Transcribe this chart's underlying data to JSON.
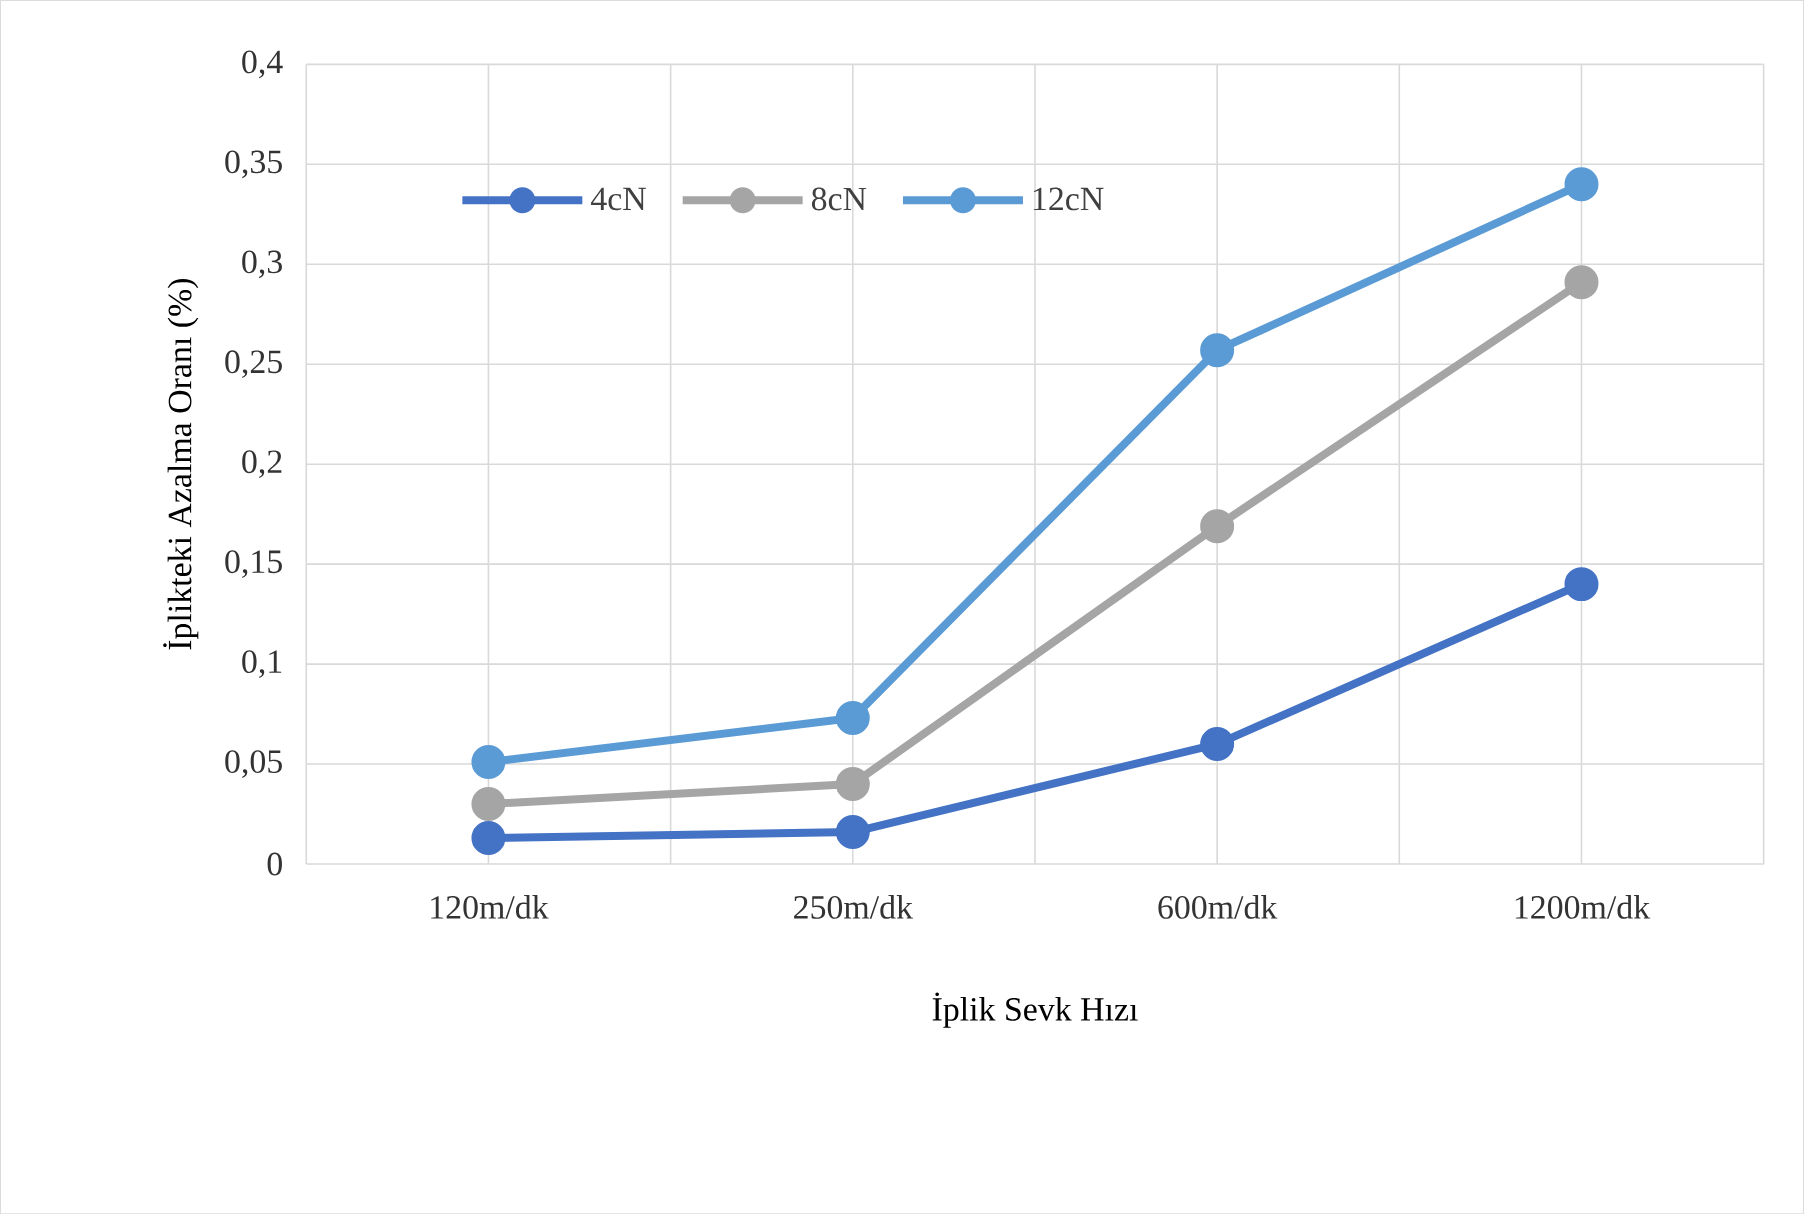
{
  "chart_data": {
    "type": "line",
    "xlabel": "İplik Sevk Hızı",
    "ylabel": "İplikteki Azalma Oranı (%)",
    "categories": [
      "120m/dk",
      "250m/dk",
      "600m/dk",
      "1200m/dk"
    ],
    "series": [
      {
        "name": "4cN",
        "color": "#4472c4",
        "values": [
          0.013,
          0.016,
          0.06,
          0.14
        ]
      },
      {
        "name": "8cN",
        "color": "#a5a5a5",
        "values": [
          0.03,
          0.04,
          0.169,
          0.291
        ]
      },
      {
        "name": "12cN",
        "color": "#5b9bd5",
        "values": [
          0.051,
          0.073,
          0.257,
          0.34
        ]
      }
    ],
    "ylim": [
      0,
      0.4
    ],
    "yticks": [
      0,
      {
        "value": 0.05,
        "label": "0,05"
      },
      {
        "value": 0.1,
        "label": "0,1"
      },
      {
        "value": 0.15,
        "label": "0,15"
      },
      {
        "value": 0.2,
        "label": "0,2"
      },
      {
        "value": 0.25,
        "label": "0,25"
      },
      {
        "value": 0.3,
        "label": "0,3"
      },
      {
        "value": 0.35,
        "label": "0,35"
      },
      {
        "value": 0.4,
        "label": "0,4"
      }
    ],
    "grid": true,
    "legend": "top left",
    "marker": "circle",
    "line_style": "solid"
  }
}
